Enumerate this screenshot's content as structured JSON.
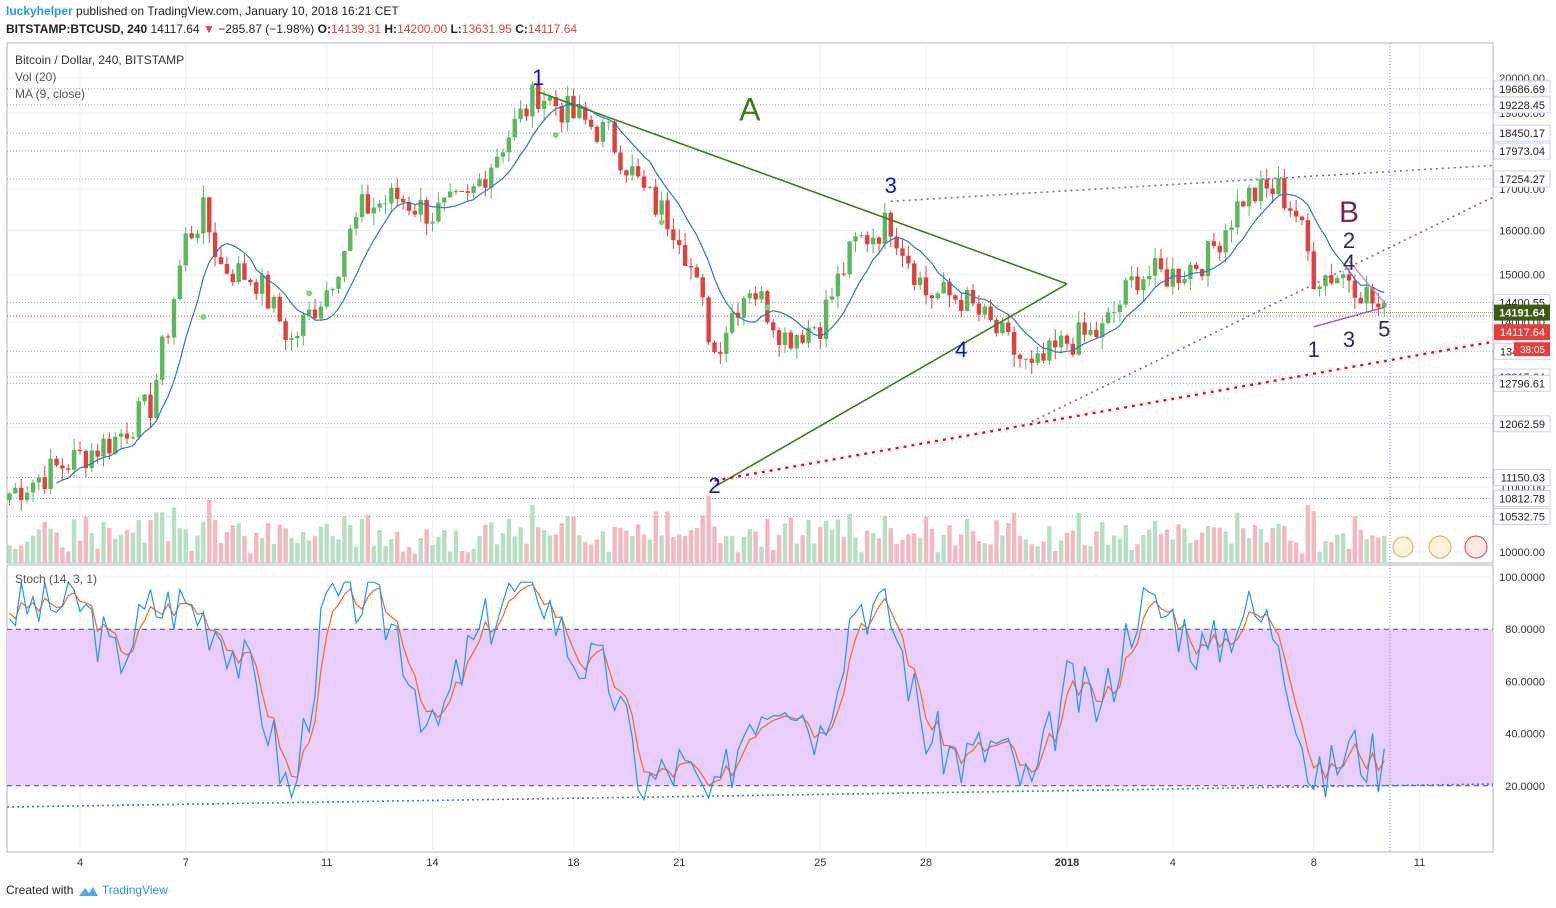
{
  "header": {
    "publisher": "luckyhelper",
    "published_text": "published on TradingView.com, January 10, 2018 16:21 CET",
    "symbol": "BITSTAMP:BTCUSD, 240",
    "last": "14117.64",
    "change": "−285.87 (−1.98%)",
    "o_label": "O:",
    "o_value": "14139.31",
    "h_label": "H:",
    "h_value": "14200.00",
    "l_label": "L:",
    "l_value": "13631.95",
    "c_label": "C:",
    "c_value": "14117.64"
  },
  "legend": {
    "main": "Bitcoin / Dollar, 240, BITSTAMP",
    "vol": "Vol (20)",
    "ma": "MA (9, close)",
    "stoch": "Stoch (14, 3, 1)"
  },
  "footer": {
    "created_with": "Created with",
    "brand": "TradingView"
  },
  "colors": {
    "up": "#5cb85c",
    "down": "#e0413d",
    "ma": "#2a7bbf",
    "stoch_k": "#2196f3",
    "stoch_d": "#f26b21",
    "stoch_band": "#e9cefc",
    "triangle": "#3f7f1e",
    "wave_labels": "#1010d0",
    "b_label": "#7b2553"
  },
  "chart_data": [
    {
      "type": "candlestick",
      "title": "Bitcoin / Dollar, 240, BITSTAMP",
      "x_tick_labels": [
        "4",
        "7",
        "11",
        "14",
        "18",
        "21",
        "25",
        "28",
        "2018",
        "4",
        "8",
        "11"
      ],
      "y_tick_labels": [
        "10000.00",
        "11000.00",
        "12000.00",
        "13000.00",
        "14000.00",
        "15000.00",
        "16000.00",
        "17000.00",
        "18000.00",
        "19000.00",
        "20000.00"
      ],
      "ylim": [
        10000,
        20000
      ],
      "price_level_labels": [
        "19686.69",
        "19228.45",
        "18450.17",
        "17973.04",
        "17254.27",
        "14400.55",
        "13411.59",
        "12915.64",
        "12796.61",
        "12062.59",
        "11150.03",
        "10812.78",
        "10532.75"
      ],
      "current_price_tags": [
        "14191.64",
        "14117.64",
        "38:05"
      ],
      "close_path": [
        [
          "2017-12-02",
          10900
        ],
        [
          "2017-12-04",
          11500
        ],
        [
          "2017-12-05",
          11800
        ],
        [
          "2017-12-06",
          12400
        ],
        [
          "2017-12-06 12h",
          13900
        ],
        [
          "2017-12-07",
          15800
        ],
        [
          "2017-12-07 12h",
          16400
        ],
        [
          "2017-12-08",
          15200
        ],
        [
          "2017-12-09",
          14900
        ],
        [
          "2017-12-10",
          13600
        ],
        [
          "2017-12-11",
          14700
        ],
        [
          "2017-12-12",
          16500
        ],
        [
          "2017-12-13",
          16800
        ],
        [
          "2017-12-14",
          16400
        ],
        [
          "2017-12-15",
          16700
        ],
        [
          "2017-12-16",
          18200
        ],
        [
          "2017-12-17",
          19600
        ],
        [
          "2017-12-18",
          18900
        ],
        [
          "2017-12-19",
          18400
        ],
        [
          "2017-12-20",
          16900
        ],
        [
          "2017-12-21",
          16000
        ],
        [
          "2017-12-22",
          13400
        ],
        [
          "2017-12-22 12h",
          14200
        ],
        [
          "2017-12-23",
          14800
        ],
        [
          "2017-12-24",
          13700
        ],
        [
          "2017-12-25",
          14000
        ],
        [
          "2017-12-26",
          15700
        ],
        [
          "2017-12-27",
          16200
        ],
        [
          "2017-12-28",
          14600
        ],
        [
          "2017-12-29",
          14500
        ],
        [
          "2017-12-30",
          13800
        ],
        [
          "2017-12-31",
          13000
        ],
        [
          "2018-01-01",
          13600
        ],
        [
          "2018-01-02",
          13800
        ],
        [
          "2018-01-03",
          15000
        ],
        [
          "2018-01-04",
          15000
        ],
        [
          "2018-01-05",
          15400
        ],
        [
          "2018-01-06",
          16800
        ],
        [
          "2018-01-07",
          17000
        ],
        [
          "2018-01-07 12h",
          16400
        ],
        [
          "2018-01-08",
          15000
        ],
        [
          "2018-01-09",
          15000
        ],
        [
          "2018-01-10",
          14117.64
        ]
      ],
      "ma_period": 9,
      "volume_label": "Vol (20)",
      "annotations": {
        "wave_labels": [
          {
            "text": "1",
            "x": "2017-12-17",
            "y": 19800
          },
          {
            "text": "2",
            "x": "2017-12-22",
            "y": 10900
          },
          {
            "text": "3",
            "x": "2017-12-27",
            "y": 16900
          },
          {
            "text": "4",
            "x": "2017-12-29",
            "y": 13300
          },
          {
            "text": "A",
            "x": "2017-12-23",
            "y": 18800
          },
          {
            "text": "B",
            "x": "2018-01-09",
            "y": 16200
          },
          {
            "text": "1",
            "x": "2018-01-08",
            "y": 13300
          },
          {
            "text": "2",
            "x": "2018-01-09",
            "y": 15600
          },
          {
            "text": "3",
            "x": "2018-01-09",
            "y": 13500
          },
          {
            "text": "4",
            "x": "2018-01-09",
            "y": 15100
          },
          {
            "text": "5",
            "x": "2018-01-10",
            "y": 13700
          }
        ]
      }
    },
    {
      "type": "line",
      "title": "Stoch (14, 3, 1)",
      "y_tick_labels": [
        "20.0000",
        "40.0000",
        "60.0000",
        "80.0000",
        "100.0000"
      ],
      "ylim": [
        0,
        100
      ],
      "band": [
        20,
        80
      ],
      "series": [
        {
          "values_x": [
            "2017-12-02",
            "2017-12-04",
            "2017-12-05",
            "2017-12-06",
            "2017-12-07",
            "2017-12-08",
            "2017-12-09",
            "2017-12-10",
            "2017-12-11",
            "2017-12-12",
            "2017-12-13",
            "2017-12-14",
            "2017-12-15",
            "2017-12-16",
            "2017-12-17",
            "2017-12-18",
            "2017-12-19",
            "2017-12-20",
            "2017-12-21",
            "2017-12-22",
            "2017-12-23",
            "2017-12-24",
            "2017-12-25",
            "2017-12-26",
            "2017-12-27",
            "2017-12-28",
            "2017-12-29",
            "2017-12-30",
            "2017-12-31",
            "2018-01-01",
            "2018-01-02",
            "2018-01-03",
            "2018-01-04",
            "2018-01-05",
            "2018-01-06",
            "2018-01-07",
            "2018-01-08",
            "2018-01-09",
            "2018-01-10"
          ],
          "values": [
            88,
            90,
            68,
            88,
            90,
            80,
            58,
            14,
            90,
            92,
            80,
            38,
            70,
            92,
            98,
            70,
            62,
            20,
            28,
            12,
            48,
            58,
            40,
            92,
            85,
            40,
            30,
            36,
            18,
            58,
            50,
            90,
            85,
            70,
            88,
            80,
            18,
            35,
            28
          ]
        }
      ]
    }
  ]
}
